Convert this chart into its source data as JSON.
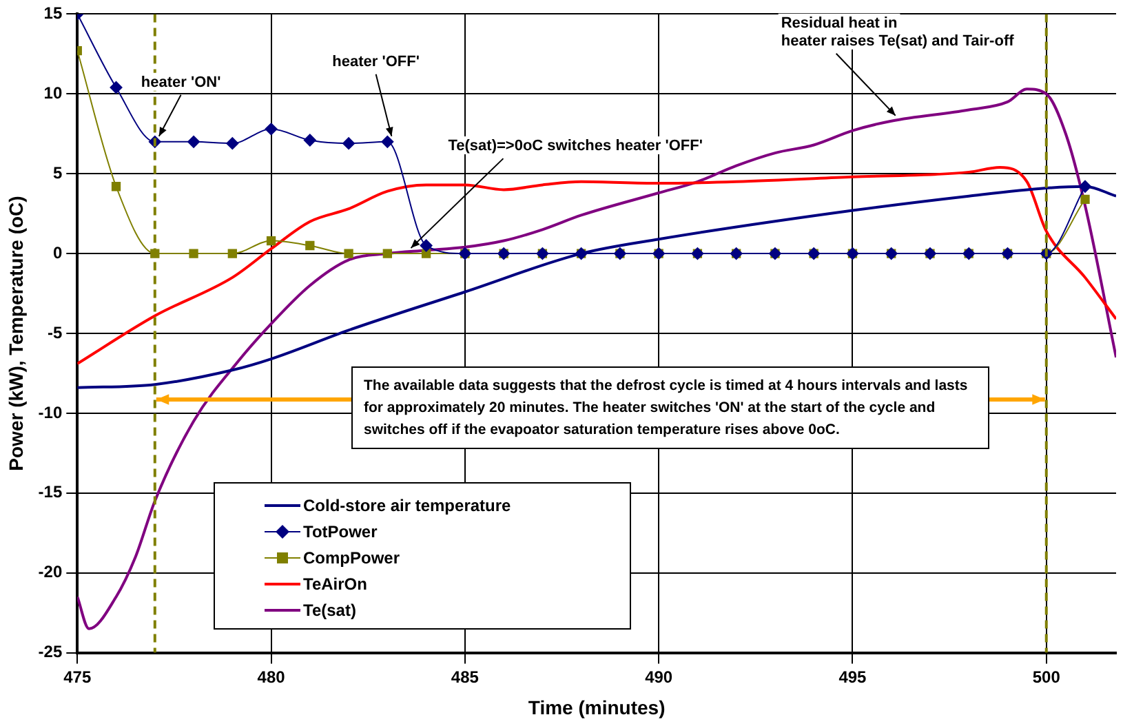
{
  "chart_data": {
    "type": "line",
    "xlabel": "Time (minutes)",
    "ylabel": "Power (kW), Temperature (oC)",
    "xlim": [
      475,
      501.8
    ],
    "xticks": [
      475,
      480,
      485,
      490,
      495,
      500
    ],
    "ylim": [
      -25,
      15
    ],
    "yticks": [
      -25,
      -20,
      -15,
      -10,
      -5,
      0,
      5,
      10,
      15
    ],
    "grid": true,
    "legend": "bottom left",
    "series": [
      {
        "name": "Cold-store air temperature",
        "color": "#000080",
        "marker": "none",
        "x": [
          475,
          477,
          479,
          480,
          482,
          485,
          488,
          490,
          495,
          498,
          500,
          501,
          501.8
        ],
        "values": [
          -8.4,
          -8.2,
          -7.3,
          -6.6,
          -4.8,
          -2.4,
          0,
          0.9,
          2.7,
          3.6,
          4.1,
          4.2,
          3.6
        ]
      },
      {
        "name": "TotPower",
        "color": "#000080",
        "marker": "diamond",
        "x": [
          475,
          476,
          477,
          478,
          479,
          480,
          481,
          482,
          483,
          484,
          485,
          486,
          487,
          488,
          489,
          490,
          491,
          492,
          493,
          494,
          495,
          496,
          497,
          498,
          499,
          500,
          501
        ],
        "values": [
          15,
          10.4,
          7.0,
          7.0,
          6.9,
          7.8,
          7.1,
          6.9,
          7.0,
          0.5,
          0,
          0,
          0,
          0,
          0,
          0,
          0,
          0,
          0,
          0,
          0,
          0,
          0,
          0,
          0,
          0,
          4.2
        ]
      },
      {
        "name": "CompPower",
        "color": "#808000",
        "marker": "square",
        "x": [
          475,
          476,
          477,
          478,
          479,
          480,
          481,
          482,
          483,
          484,
          485,
          486,
          487,
          488,
          489,
          490,
          491,
          492,
          493,
          494,
          495,
          496,
          497,
          498,
          499,
          500,
          501
        ],
        "values": [
          12.7,
          4.2,
          0,
          0,
          0,
          0.8,
          0.5,
          0,
          0,
          0,
          0,
          0,
          0,
          0,
          0,
          0,
          0,
          0,
          0,
          0,
          0,
          0,
          0,
          0,
          0,
          0,
          3.4
        ]
      },
      {
        "name": "TeAirOn",
        "color": "#ff0000",
        "marker": "none",
        "x": [
          475,
          477,
          479,
          480,
          481,
          482,
          483,
          484,
          485,
          486,
          487,
          488,
          490,
          492,
          495,
          498,
          498.8,
          499.5,
          500,
          501,
          501.8
        ],
        "values": [
          -6.9,
          -3.9,
          -1.5,
          0.3,
          2.0,
          2.8,
          3.9,
          4.3,
          4.3,
          4.0,
          4.3,
          4.5,
          4.4,
          4.5,
          4.8,
          5.1,
          5.4,
          4.5,
          1.4,
          -1.5,
          -4.1
        ]
      },
      {
        "name": "Te(sat)",
        "color": "#800080",
        "marker": "none",
        "x": [
          475,
          475.3,
          476,
          476.5,
          477,
          478,
          479.2,
          480,
          481,
          482,
          483,
          484,
          485,
          486,
          487,
          488,
          490,
          491,
          492,
          493,
          494,
          495,
          496,
          498,
          499,
          499.5,
          500,
          500.5,
          501,
          501.8
        ],
        "values": [
          -21.5,
          -23.5,
          -21.5,
          -19,
          -15.5,
          -10.5,
          -6.6,
          -4.4,
          -2.0,
          -0.4,
          0,
          0.2,
          0.4,
          0.8,
          1.5,
          2.4,
          3.8,
          4.5,
          5.5,
          6.3,
          6.8,
          7.7,
          8.3,
          9.0,
          9.5,
          10.3,
          10.0,
          7.5,
          3.0,
          -6.5
        ]
      }
    ],
    "ref_lines": [
      {
        "axis": "x",
        "value": 477,
        "color": "#808000",
        "line_style": "dashed"
      },
      {
        "axis": "x",
        "value": 500,
        "color": "#808000",
        "line_style": "dashed"
      }
    ],
    "annotations": [
      {
        "text": "heater 'ON'",
        "x": 477,
        "y": 7.0
      },
      {
        "text": "heater 'OFF'",
        "x": 483,
        "y": 7.0
      },
      {
        "text": "Te(sat)=>0oC switches heater 'OFF'",
        "x": 483.5,
        "y": 0
      },
      {
        "text": "Residual heat in\nheater raises Te(sat) and Tair-off",
        "x": 496,
        "y": 8.3
      },
      "The available data suggests that the defrost cycle is timed  at 4 hours intervals and lasts for approximately 20 minutes.  The heater switches 'ON' at the start of the cycle and switches off if the evapoator saturation temperature rises above 0oC."
    ]
  }
}
